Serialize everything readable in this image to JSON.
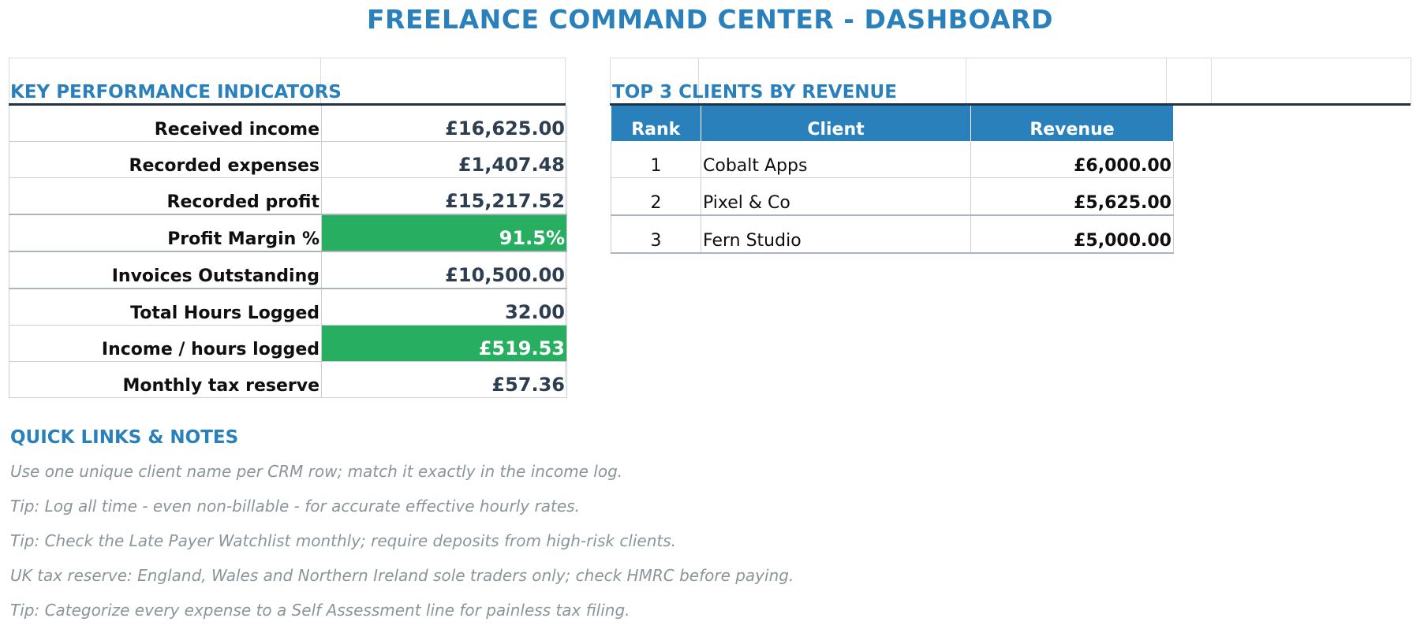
{
  "dashboard": {
    "title": "FREELANCE COMMAND CENTER - DASHBOARD"
  },
  "kpi": {
    "heading": "KEY PERFORMANCE INDICATORS",
    "rows": [
      {
        "label": "Received income",
        "value": "£16,625.00",
        "highlight": false
      },
      {
        "label": "Recorded expenses",
        "value": "£1,407.48",
        "highlight": false
      },
      {
        "label": "Recorded profit",
        "value": "£15,217.52",
        "highlight": false
      },
      {
        "label": "Profit Margin %",
        "value": "91.5%",
        "highlight": true
      },
      {
        "label": "Invoices Outstanding",
        "value": "£10,500.00",
        "highlight": false
      },
      {
        "label": "Total Hours Logged",
        "value": "32.00",
        "highlight": false
      },
      {
        "label": "Income / hours logged",
        "value": "£519.53",
        "highlight": true
      },
      {
        "label": "Monthly tax reserve",
        "value": "£57.36",
        "highlight": false
      }
    ]
  },
  "top_clients": {
    "heading": "TOP 3 CLIENTS BY REVENUE",
    "columns": [
      "Rank",
      "Client",
      "Revenue"
    ],
    "rows": [
      {
        "rank": "1",
        "client": "Cobalt Apps",
        "revenue": "£6,000.00"
      },
      {
        "rank": "2",
        "client": "Pixel & Co",
        "revenue": "£5,625.00"
      },
      {
        "rank": "3",
        "client": "Fern Studio",
        "revenue": "£5,000.00"
      }
    ]
  },
  "notes": {
    "heading": "QUICK LINKS & NOTES",
    "items": [
      "Use one unique client name per CRM row; match it exactly in the income log.",
      "Tip: Log all time - even non-billable - for accurate effective hourly rates.",
      "Tip: Check the Late Payer Watchlist monthly; require deposits from high-risk clients.",
      "UK tax reserve: England, Wales and Northern Ireland sole traders only; check HMRC before paying.",
      "Tip: Categorize every expense to a Self Assessment line for painless tax filing."
    ]
  },
  "colors": {
    "accent": "#2a80ba",
    "good": "#27ae60",
    "rule": "#1f3247",
    "note_text": "#8a9599"
  }
}
